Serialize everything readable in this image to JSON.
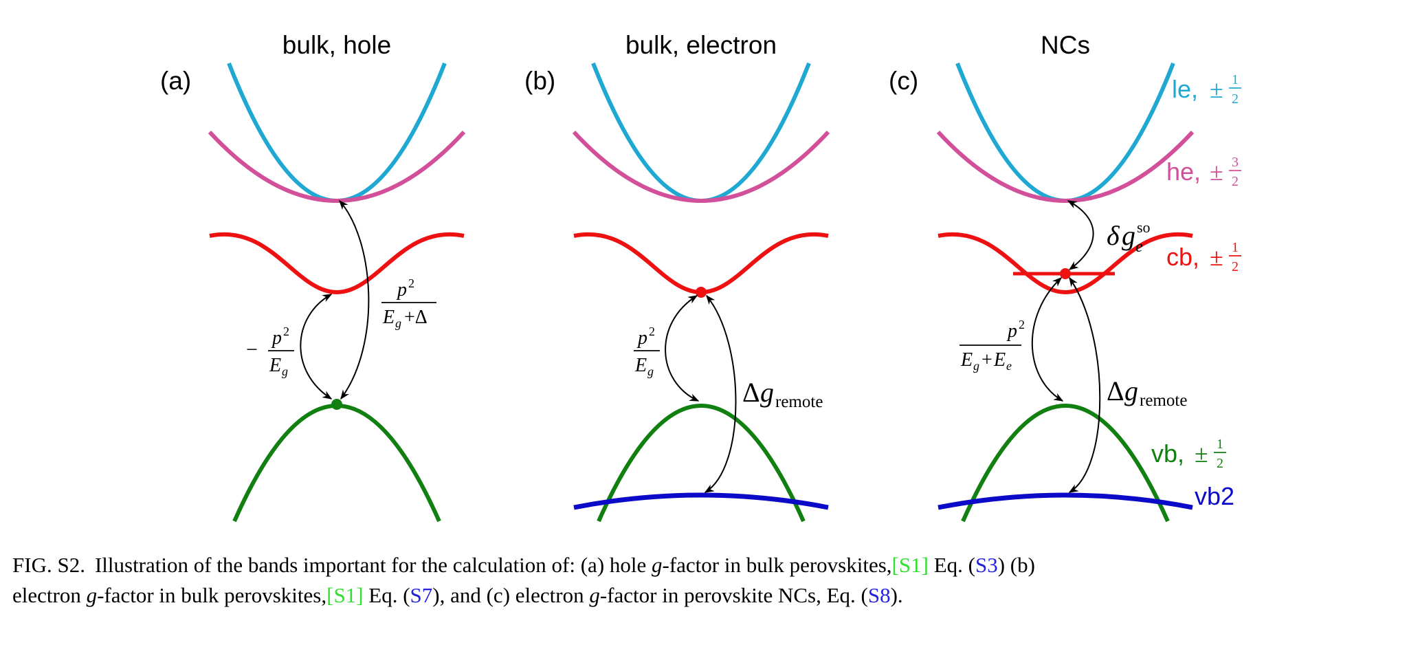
{
  "colors": {
    "le": "#1fa8d2",
    "he": "#d24f9a",
    "cb": "#ee1111",
    "vb": "#118011",
    "vb2": "#0a0ac8",
    "ref_green": "#33dd33",
    "ref_blue": "#2222dd"
  },
  "panels": [
    {
      "label": "(a)",
      "title": "bulk, hole"
    },
    {
      "label": "(b)",
      "title": "bulk, electron"
    },
    {
      "label": "(c)",
      "title": "NCs"
    }
  ],
  "band_labels": {
    "le": {
      "name": "le, ",
      "pm": "±",
      "num": "1",
      "den": "2"
    },
    "he": {
      "name": "he, ",
      "pm": "±",
      "num": "3",
      "den": "2"
    },
    "cb": {
      "name": "cb, ",
      "pm": "±",
      "num": "1",
      "den": "2"
    },
    "vb": {
      "name": "vb, ",
      "pm": "±",
      "num": "1",
      "den": "2"
    },
    "vb2": {
      "name": "vb2"
    }
  },
  "annotations": {
    "a_minus": "−",
    "p_sym": "p",
    "sq": "2",
    "E_sym": "E",
    "g_sub": "g",
    "plus_delta": "+Δ",
    "plus_E": "+",
    "e_sub": "e",
    "Delta": "Δ",
    "g_sym": "g",
    "remote": "remote",
    "delta": "δ",
    "so": "so"
  },
  "caption": {
    "fig": "FIG. S2.",
    "t1": "Illustration of the bands important for the calculation of: (a) hole",
    "g": "g",
    "t2": "-factor in bulk perovskites,",
    "ref1_open": "[",
    "ref1": "S1",
    "ref1_close": "]",
    "t3": " Eq. (",
    "eq1": "S3",
    "t4": ") (b)",
    "t5": "electron",
    "t6": "-factor in bulk perovskites,",
    "ref2": "S1",
    "t7": " Eq. (",
    "eq2": "S7",
    "t8": "), and (c) electron",
    "t9": "-factor in perovskite NCs, Eq. (",
    "eq3": "S8",
    "t10": ")."
  }
}
